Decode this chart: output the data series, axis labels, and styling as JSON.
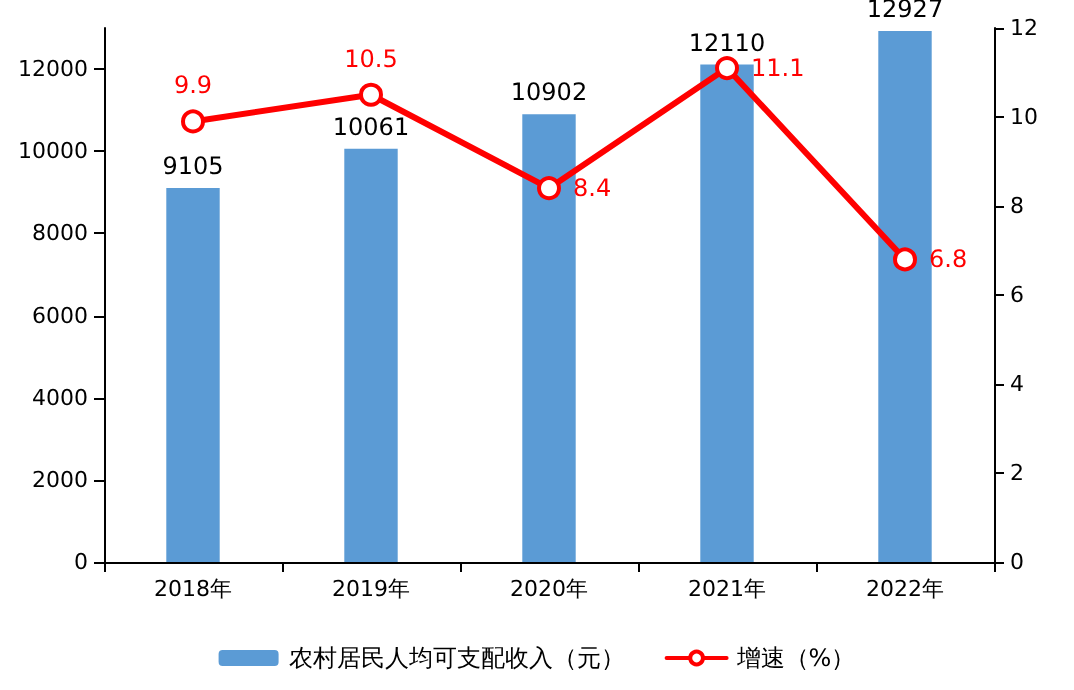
{
  "chart_data": {
    "type": "bar",
    "categories": [
      "2018年",
      "2019年",
      "2020年",
      "2021年",
      "2022年"
    ],
    "series": [
      {
        "name": "农村居民人均可支配收入（元）",
        "color": "#5b9bd5",
        "values": [
          9105,
          10061,
          10902,
          12110,
          12927
        ]
      },
      {
        "name": "增速（%）",
        "type": "line",
        "axis": "y2",
        "color": "#ff0000",
        "marker": "circle",
        "values": [
          9.9,
          10.5,
          8.4,
          11.1,
          6.8
        ]
      }
    ],
    "data_labels": true,
    "ylim": [
      0,
      13000
    ],
    "yticks": [
      0,
      2000,
      4000,
      6000,
      8000,
      10000,
      12000
    ],
    "y2lim": [
      0,
      12
    ],
    "y2ticks": [
      0,
      2,
      4,
      6,
      8,
      10,
      12
    ],
    "grid": false,
    "legend": "bottom"
  }
}
